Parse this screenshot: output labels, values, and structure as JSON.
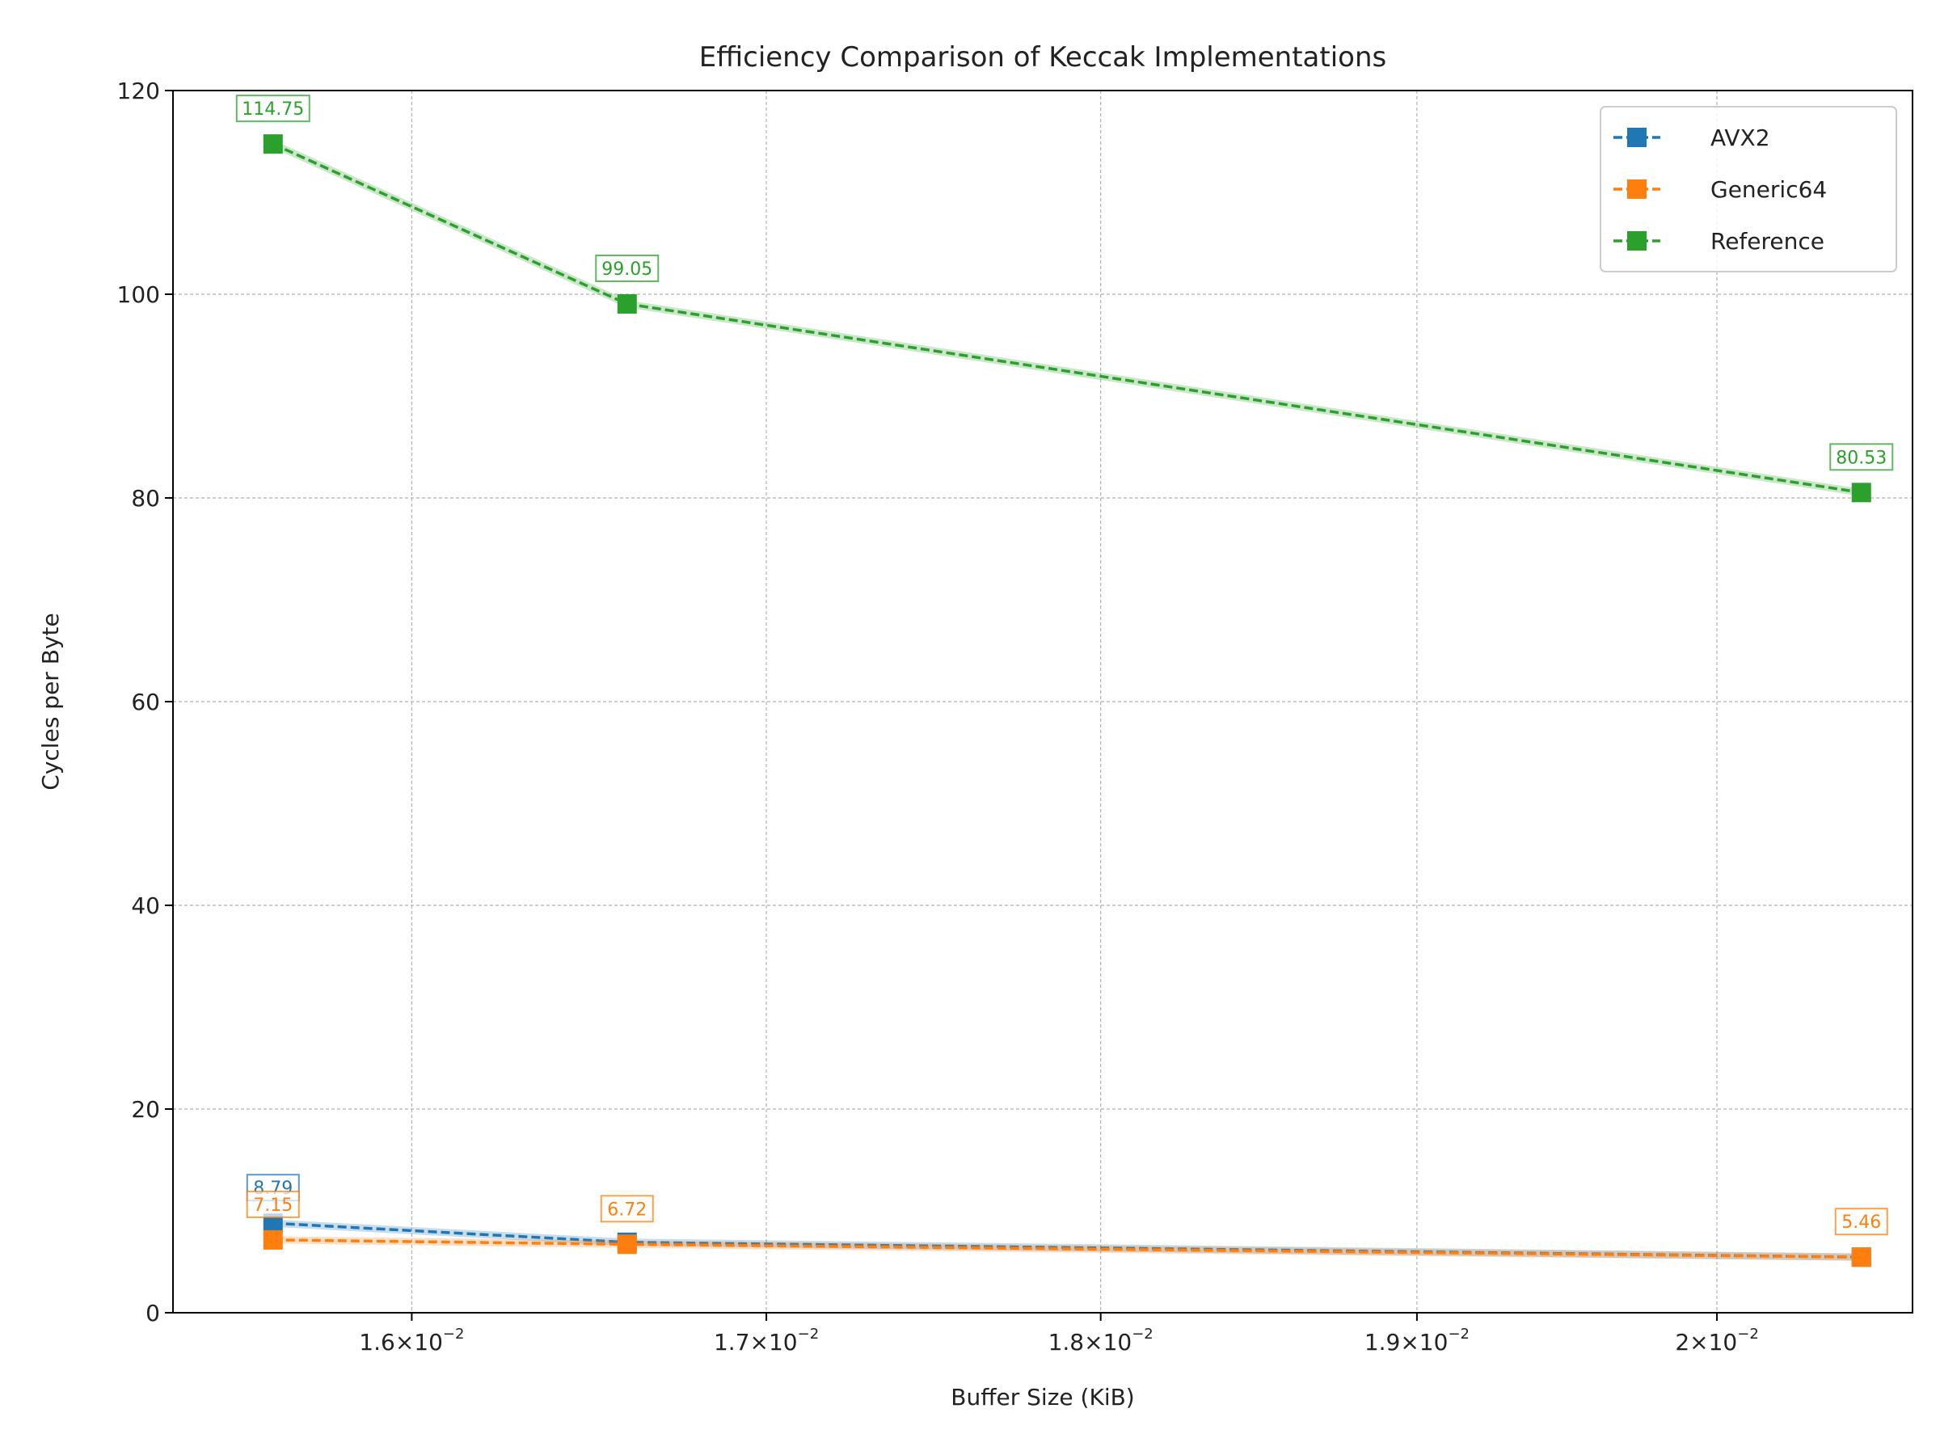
{
  "chart_data": {
    "type": "line",
    "title": "Efficiency Comparison of Keccak Implementations",
    "xlabel": "Buffer Size (KiB)",
    "ylabel": "Cycles per Byte",
    "x_scale": "log",
    "x": [
      0.015625,
      0.0166,
      0.0205
    ],
    "xlim": [
      0.01536,
      0.02068
    ],
    "ylim": [
      0,
      120
    ],
    "x_ticks": [
      {
        "value": 0.016,
        "mantissa": "1.6",
        "exponent": "−2"
      },
      {
        "value": 0.017,
        "mantissa": "1.7",
        "exponent": "−2"
      },
      {
        "value": 0.018,
        "mantissa": "1.8",
        "exponent": "−2"
      },
      {
        "value": 0.019,
        "mantissa": "1.9",
        "exponent": "−2"
      },
      {
        "value": 0.02,
        "mantissa": "2",
        "exponent": "−2"
      }
    ],
    "y_ticks": [
      {
        "value": 0,
        "label": "0"
      },
      {
        "value": 20,
        "label": "20"
      },
      {
        "value": 40,
        "label": "40"
      },
      {
        "value": 60,
        "label": "60"
      },
      {
        "value": 80,
        "label": "80"
      },
      {
        "value": 100,
        "label": "100"
      },
      {
        "value": 120,
        "label": "120"
      }
    ],
    "grid": true,
    "legend_position": "top-right",
    "series": [
      {
        "name": "AVX2",
        "color": "#1f77b4",
        "values": [
          8.79,
          6.92,
          5.46
        ],
        "labels": [
          "8.79",
          "",
          ""
        ]
      },
      {
        "name": "Generic64",
        "color": "#ff7f0e",
        "values": [
          7.15,
          6.72,
          5.46
        ],
        "labels": [
          "7.15",
          "6.72",
          "5.46"
        ]
      },
      {
        "name": "Reference",
        "color": "#2ca02c",
        "values": [
          114.75,
          99.05,
          80.53
        ],
        "labels": [
          "114.75",
          "99.05",
          "80.53"
        ]
      }
    ]
  }
}
